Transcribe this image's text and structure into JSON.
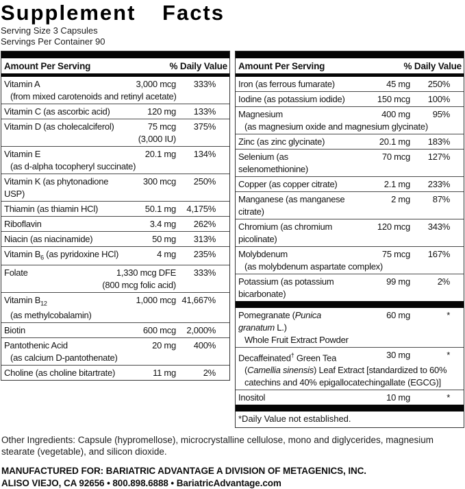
{
  "title": "Supplement Facts",
  "serving_size": "Serving Size 3 Capsules",
  "servings_per_container": "Servings Per Container 90",
  "colors": {
    "bar": "#000000",
    "text": "#111111",
    "separator": "#4a4a4a"
  },
  "columns": [
    {
      "header": {
        "left": "Amount Per Serving",
        "right": "% Daily Value"
      },
      "sections": [
        {
          "rows": [
            {
              "name": [
                {
                  "t": "Vitamin A"
                }
              ],
              "amount": [
                "3,000 mcg"
              ],
              "dv": "333%",
              "sub": [
                [
                  {
                    "t": "(from mixed carotenoids and retinyl acetate)"
                  }
                ]
              ]
            },
            {
              "name": [
                {
                  "t": "Vitamin C (as ascorbic acid)"
                }
              ],
              "amount": [
                "120 mg"
              ],
              "dv": "133%"
            },
            {
              "name": [
                {
                  "t": "Vitamin D (as cholecalciferol)"
                }
              ],
              "amount": [
                "75 mcg",
                "(3,000 IU)"
              ],
              "dv": "375%"
            },
            {
              "name": [
                {
                  "t": "Vitamin E"
                }
              ],
              "amount": [
                "20.1 mg"
              ],
              "dv": "134%",
              "sub": [
                [
                  {
                    "t": "(as d-alpha tocopheryl succinate)"
                  }
                ]
              ]
            },
            {
              "name": [
                {
                  "t": "Vitamin K (as phytonadione USP)"
                }
              ],
              "amount": [
                "300 mcg"
              ],
              "dv": "250%"
            },
            {
              "name": [
                {
                  "t": "Thiamin (as thiamin HCl)"
                }
              ],
              "amount": [
                "50.1 mg"
              ],
              "dv": "4,175%"
            },
            {
              "name": [
                {
                  "t": "Riboflavin"
                }
              ],
              "amount": [
                "3.4 mg"
              ],
              "dv": "262%"
            },
            {
              "name": [
                {
                  "t": "Niacin (as niacinamide)"
                }
              ],
              "amount": [
                "50 mg"
              ],
              "dv": "313%"
            },
            {
              "name": [
                {
                  "t": "Vitamin B"
                },
                {
                  "t": "6",
                  "style": "sub"
                },
                {
                  "t": " (as pyridoxine HCl)"
                }
              ],
              "amount": [
                "4 mg"
              ],
              "dv": "235%"
            },
            {
              "name": [
                {
                  "t": "Folate"
                }
              ],
              "amount": [
                "1,330 mcg DFE",
                "(800 mcg folic acid)"
              ],
              "dv": "333%"
            },
            {
              "name": [
                {
                  "t": "Vitamin B"
                },
                {
                  "t": "12",
                  "style": "sub"
                }
              ],
              "amount": [
                "1,000 mcg"
              ],
              "dv": "41,667%",
              "sub": [
                [
                  {
                    "t": "(as methylcobalamin)"
                  }
                ]
              ]
            },
            {
              "name": [
                {
                  "t": "Biotin"
                }
              ],
              "amount": [
                "600 mcg"
              ],
              "dv": "2,000%"
            },
            {
              "name": [
                {
                  "t": "Pantothenic Acid"
                }
              ],
              "amount": [
                "20 mg"
              ],
              "dv": "400%",
              "sub": [
                [
                  {
                    "t": "(as calcium D-pantothenate)"
                  }
                ]
              ]
            },
            {
              "name": [
                {
                  "t": "Choline (as choline bitartrate)"
                }
              ],
              "amount": [
                "11 mg"
              ],
              "dv": "2%"
            }
          ]
        }
      ]
    },
    {
      "header": {
        "left": "Amount Per Serving",
        "right": "% Daily Value"
      },
      "sections": [
        {
          "rows": [
            {
              "name": [
                {
                  "t": "Iron (as ferrous fumarate)"
                }
              ],
              "amount": [
                "45 mg"
              ],
              "dv": "250%"
            },
            {
              "name": [
                {
                  "t": "Iodine (as potassium iodide)"
                }
              ],
              "amount": [
                "150 mcg"
              ],
              "dv": "100%"
            },
            {
              "name": [
                {
                  "t": "Magnesium"
                }
              ],
              "amount": [
                "400 mg"
              ],
              "dv": "95%",
              "sub": [
                [
                  {
                    "t": "(as magnesium oxide and magnesium glycinate)"
                  }
                ]
              ]
            },
            {
              "name": [
                {
                  "t": "Zinc (as zinc glycinate)"
                }
              ],
              "amount": [
                "20.1 mg"
              ],
              "dv": "183%"
            },
            {
              "name": [
                {
                  "t": "Selenium (as selenomethionine)"
                }
              ],
              "amount": [
                "70 mcg"
              ],
              "dv": "127%"
            },
            {
              "name": [
                {
                  "t": "Copper (as copper citrate)"
                }
              ],
              "amount": [
                "2.1 mg"
              ],
              "dv": "233%"
            },
            {
              "name": [
                {
                  "t": "Manganese (as manganese citrate)"
                }
              ],
              "amount": [
                "2 mg"
              ],
              "dv": "87%"
            },
            {
              "name": [
                {
                  "t": "Chromium (as chromium picolinate)"
                }
              ],
              "amount": [
                "120 mcg"
              ],
              "dv": "343%"
            },
            {
              "name": [
                {
                  "t": "Molybdenum"
                }
              ],
              "amount": [
                "75 mcg"
              ],
              "dv": "167%",
              "sub": [
                [
                  {
                    "t": "(as molybdenum aspartate complex)"
                  }
                ]
              ]
            },
            {
              "name": [
                {
                  "t": "Potassium (as potassium bicarbonate)"
                }
              ],
              "amount": [
                "99 mg"
              ],
              "dv": "2%"
            }
          ]
        },
        {
          "rows": [
            {
              "name": [
                {
                  "t": "Pomegranate ("
                },
                {
                  "t": "Punica granatum",
                  "style": "italic"
                },
                {
                  "t": " L.)"
                }
              ],
              "amount": [
                "60 mg"
              ],
              "dv": "*",
              "sub": [
                [
                  {
                    "t": "Whole Fruit Extract Powder"
                  }
                ]
              ]
            },
            {
              "name": [
                {
                  "t": "Decaffeinated"
                },
                {
                  "t": "†",
                  "style": "sup"
                },
                {
                  "t": " Green Tea"
                }
              ],
              "amount": [
                "30 mg"
              ],
              "dv": "*",
              "sub": [
                [
                  {
                    "t": "("
                  },
                  {
                    "t": "Camellia sinensis",
                    "style": "italic"
                  },
                  {
                    "t": ") Leaf Extract [standardized to 60%"
                  }
                ],
                [
                  {
                    "t": "catechins and 40% epigallocatechingallate (EGCG)]"
                  }
                ]
              ]
            },
            {
              "name": [
                {
                  "t": "Inositol"
                }
              ],
              "amount": [
                "10 mg"
              ],
              "dv": "*"
            }
          ]
        }
      ],
      "footnote": "*Daily Value not established."
    }
  ],
  "other_ingredients": "Other Ingredients: Capsule (hypromellose), microcrystalline cellulose, mono and diglycerides, magnesium stearate (vegetable), and silicon dioxide.",
  "manufacturer": {
    "line1": "MANUFACTURED FOR: BARIATRIC ADVANTAGE A DIVISION OF METAGENICS, INC.",
    "line2": "ALISO VIEJO, CA 92656 • 800.898.6888 • BariatricAdvantage.com"
  }
}
